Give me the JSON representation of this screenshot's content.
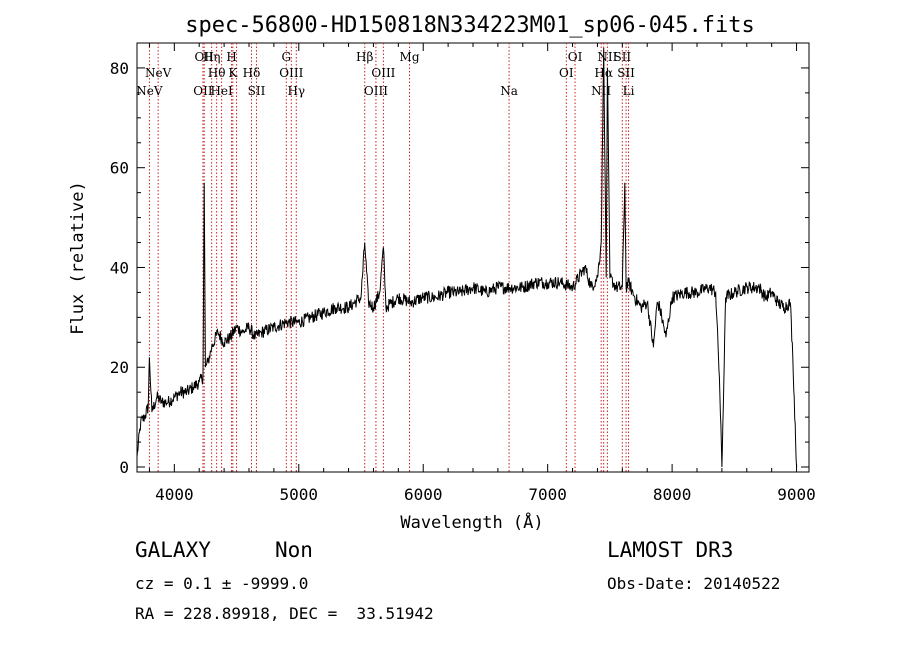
{
  "chart_data": {
    "type": "line",
    "title": "spec-56800-HD150818N334223M01_sp06-045.fits",
    "xlabel": "Wavelength (Å)",
    "ylabel": "Flux (relative)",
    "xlim": [
      3700,
      9100
    ],
    "ylim": [
      -1,
      85
    ],
    "x_ticks": [
      4000,
      5000,
      6000,
      7000,
      8000,
      9000
    ],
    "y_ticks": [
      0,
      20,
      40,
      60,
      80
    ],
    "series": [
      {
        "x": [
          3700,
          3730,
          3760,
          3790,
          3800,
          3820,
          3860,
          3900,
          3950,
          4000,
          4050,
          4100,
          4150,
          4200,
          4230,
          4240,
          4250,
          4270,
          4300,
          4350,
          4400,
          4450,
          4500,
          4550,
          4600,
          4650,
          4700,
          4800,
          4900,
          5000,
          5100,
          5200,
          5300,
          5400,
          5500,
          5530,
          5560,
          5600,
          5650,
          5680,
          5700,
          5800,
          5900,
          6000,
          6100,
          6200,
          6300,
          6400,
          6500,
          6600,
          6700,
          6800,
          6900,
          7000,
          7100,
          7200,
          7300,
          7350,
          7400,
          7430,
          7450,
          7470,
          7480,
          7500,
          7550,
          7600,
          7620,
          7630,
          7650,
          7700,
          7750,
          7800,
          7850,
          7880,
          7900,
          7950,
          8000,
          8100,
          8200,
          8300,
          8350,
          8380,
          8400,
          8430,
          8500,
          8600,
          8700,
          8750,
          8800,
          8850,
          8900,
          8950,
          8970,
          9000
        ],
        "y": [
          2,
          9,
          10,
          12,
          22,
          11,
          14,
          13,
          13,
          14,
          15,
          15,
          16,
          17,
          18,
          57,
          20,
          21,
          24,
          27,
          25,
          26,
          28,
          27,
          28,
          26,
          27,
          28,
          29,
          29,
          30,
          31,
          32,
          32,
          34,
          45,
          33,
          32,
          35,
          44,
          32,
          34,
          33,
          34,
          34,
          35,
          35,
          36,
          35,
          36,
          36,
          36,
          37,
          37,
          37,
          36,
          40,
          36,
          38,
          45,
          84,
          38,
          80,
          38,
          36,
          36,
          57,
          36,
          37,
          34,
          32,
          33,
          24,
          33,
          32,
          26,
          34,
          35,
          35,
          36,
          35,
          18,
          0,
          34,
          35,
          36,
          36,
          34,
          35,
          33,
          32,
          33,
          22,
          0
        ]
      }
    ],
    "grid": false,
    "lines": [
      {
        "x": 3800,
        "label": "NeV",
        "row": 3
      },
      {
        "x": 3870,
        "label": "NeV",
        "row": 2
      },
      {
        "x": 4230,
        "label": "OII",
        "row": 3
      },
      {
        "x": 4240,
        "label": "OII",
        "row": 1
      },
      {
        "x": 4300,
        "label": "Hη",
        "row": 1
      },
      {
        "x": 4340,
        "label": "Hθ",
        "row": 2
      },
      {
        "x": 4380,
        "label": "HeI",
        "row": 3
      },
      {
        "x": 4460,
        "label": "H",
        "row": 1
      },
      {
        "x": 4470,
        "label": "K",
        "row": 2
      },
      {
        "x": 4500,
        "label": "",
        "row": 0
      },
      {
        "x": 4620,
        "label": "Hδ",
        "row": 2
      },
      {
        "x": 4660,
        "label": "SII",
        "row": 3
      },
      {
        "x": 4900,
        "label": "G",
        "row": 1
      },
      {
        "x": 4940,
        "label": "OIII",
        "row": 2
      },
      {
        "x": 4980,
        "label": "Hγ",
        "row": 3
      },
      {
        "x": 5530,
        "label": "Hβ",
        "row": 1
      },
      {
        "x": 5620,
        "label": "OIII",
        "row": 3
      },
      {
        "x": 5680,
        "label": "OIII",
        "row": 2
      },
      {
        "x": 5890,
        "label": "Mg",
        "row": 1
      },
      {
        "x": 6690,
        "label": "Na",
        "row": 3
      },
      {
        "x": 7150,
        "label": "OI",
        "row": 2
      },
      {
        "x": 7220,
        "label": "OI",
        "row": 1
      },
      {
        "x": 7430,
        "label": "NII",
        "row": 3
      },
      {
        "x": 7450,
        "label": "Hα",
        "row": 2
      },
      {
        "x": 7480,
        "label": "NII",
        "row": 1
      },
      {
        "x": 7600,
        "label": "SII",
        "row": 1
      },
      {
        "x": 7630,
        "label": "SII",
        "row": 2
      },
      {
        "x": 7650,
        "label": "Li",
        "row": 3
      }
    ]
  },
  "info": {
    "class": "GALAXY",
    "subclass": "Non",
    "survey": "LAMOST DR3",
    "cz": "cz = 0.1 ± -9999.0",
    "obsdate": "Obs-Date: 20140522",
    "radec": "RA = 228.89918, DEC =  33.51942"
  },
  "colors": {
    "spectrum": "#000000",
    "line_marker": "#cc2222"
  }
}
